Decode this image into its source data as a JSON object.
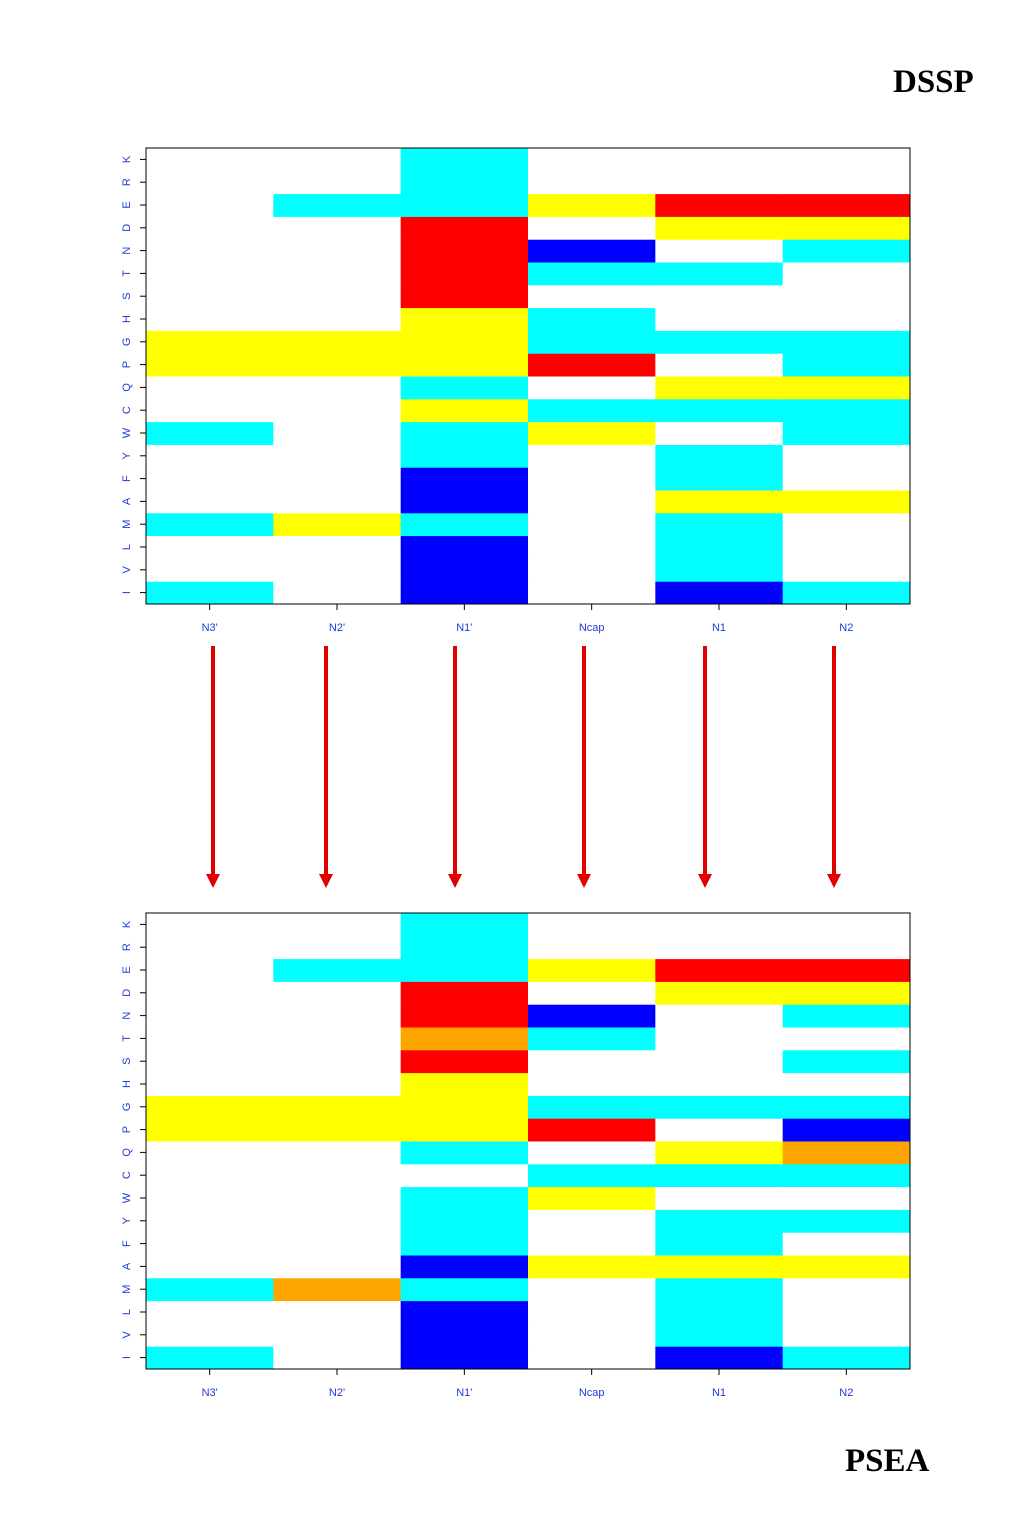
{
  "labels": {
    "top": "DSSP",
    "bottom": "PSEA"
  },
  "colors": {
    "0": "#ffffff",
    "c": "#00ffff",
    "y": "#ffff00",
    "r": "#ff0000",
    "b": "#0000ff",
    "o": "#ffa500",
    "arrow": "#e00000",
    "tick_text": "#1f3cd6"
  },
  "arrow_count": 6,
  "chart_data": [
    {
      "type": "heatmap",
      "title": "DSSP",
      "columns": [
        "N3'",
        "N2'",
        "N1'",
        "Ncap",
        "N1",
        "N2"
      ],
      "rows": [
        "I",
        "V",
        "L",
        "M",
        "A",
        "F",
        "Y",
        "W",
        "C",
        "Q",
        "P",
        "G",
        "H",
        "S",
        "T",
        "N",
        "D",
        "E",
        "R",
        "K"
      ],
      "cells": {
        "I": [
          "c",
          "0",
          "b",
          "0",
          "b",
          "c"
        ],
        "V": [
          "0",
          "0",
          "b",
          "0",
          "c",
          "0"
        ],
        "L": [
          "0",
          "0",
          "b",
          "0",
          "c",
          "0"
        ],
        "M": [
          "c",
          "y",
          "c",
          "0",
          "c",
          "0"
        ],
        "A": [
          "0",
          "0",
          "b",
          "0",
          "y",
          "y"
        ],
        "F": [
          "0",
          "0",
          "b",
          "0",
          "c",
          "0"
        ],
        "Y": [
          "0",
          "0",
          "c",
          "0",
          "c",
          "0"
        ],
        "W": [
          "c",
          "0",
          "c",
          "y",
          "0",
          "c"
        ],
        "C": [
          "0",
          "0",
          "y",
          "c",
          "c",
          "c"
        ],
        "Q": [
          "0",
          "0",
          "c",
          "0",
          "y",
          "y"
        ],
        "P": [
          "y",
          "y",
          "y",
          "r",
          "0",
          "c"
        ],
        "G": [
          "y",
          "y",
          "y",
          "c",
          "c",
          "c"
        ],
        "H": [
          "0",
          "0",
          "y",
          "c",
          "0",
          "0"
        ],
        "S": [
          "0",
          "0",
          "r",
          "0",
          "0",
          "0"
        ],
        "T": [
          "0",
          "0",
          "r",
          "c",
          "c",
          "0"
        ],
        "N": [
          "0",
          "0",
          "r",
          "b",
          "0",
          "c"
        ],
        "D": [
          "0",
          "0",
          "r",
          "0",
          "y",
          "y"
        ],
        "E": [
          "0",
          "c",
          "c",
          "y",
          "r",
          "r"
        ],
        "R": [
          "0",
          "0",
          "c",
          "0",
          "0",
          "0"
        ],
        "K": [
          "0",
          "0",
          "c",
          "0",
          "0",
          "0"
        ]
      }
    },
    {
      "type": "heatmap",
      "title": "PSEA",
      "columns": [
        "N3'",
        "N2'",
        "N1'",
        "Ncap",
        "N1",
        "N2"
      ],
      "rows": [
        "I",
        "V",
        "L",
        "M",
        "A",
        "F",
        "Y",
        "W",
        "C",
        "Q",
        "P",
        "G",
        "H",
        "S",
        "T",
        "N",
        "D",
        "E",
        "R",
        "K"
      ],
      "cells": {
        "I": [
          "c",
          "0",
          "b",
          "0",
          "b",
          "c"
        ],
        "V": [
          "0",
          "0",
          "b",
          "0",
          "c",
          "0"
        ],
        "L": [
          "0",
          "0",
          "b",
          "0",
          "c",
          "0"
        ],
        "M": [
          "c",
          "o",
          "c",
          "0",
          "c",
          "0"
        ],
        "A": [
          "0",
          "0",
          "b",
          "y",
          "y",
          "y"
        ],
        "F": [
          "0",
          "0",
          "c",
          "0",
          "c",
          "0"
        ],
        "Y": [
          "0",
          "0",
          "c",
          "0",
          "c",
          "c"
        ],
        "W": [
          "0",
          "0",
          "c",
          "y",
          "0",
          "0"
        ],
        "C": [
          "0",
          "0",
          "0",
          "c",
          "c",
          "c"
        ],
        "Q": [
          "0",
          "0",
          "c",
          "0",
          "y",
          "o"
        ],
        "P": [
          "y",
          "y",
          "y",
          "r",
          "0",
          "b"
        ],
        "G": [
          "y",
          "y",
          "y",
          "c",
          "c",
          "c"
        ],
        "H": [
          "0",
          "0",
          "y",
          "0",
          "0",
          "0"
        ],
        "S": [
          "0",
          "0",
          "r",
          "0",
          "0",
          "c"
        ],
        "T": [
          "0",
          "0",
          "o",
          "c",
          "0",
          "0"
        ],
        "N": [
          "0",
          "0",
          "r",
          "b",
          "0",
          "c"
        ],
        "D": [
          "0",
          "0",
          "r",
          "0",
          "y",
          "y"
        ],
        "E": [
          "0",
          "c",
          "c",
          "y",
          "r",
          "r"
        ],
        "R": [
          "0",
          "0",
          "c",
          "0",
          "0",
          "0"
        ],
        "K": [
          "0",
          "0",
          "c",
          "0",
          "0",
          "0"
        ]
      }
    }
  ]
}
